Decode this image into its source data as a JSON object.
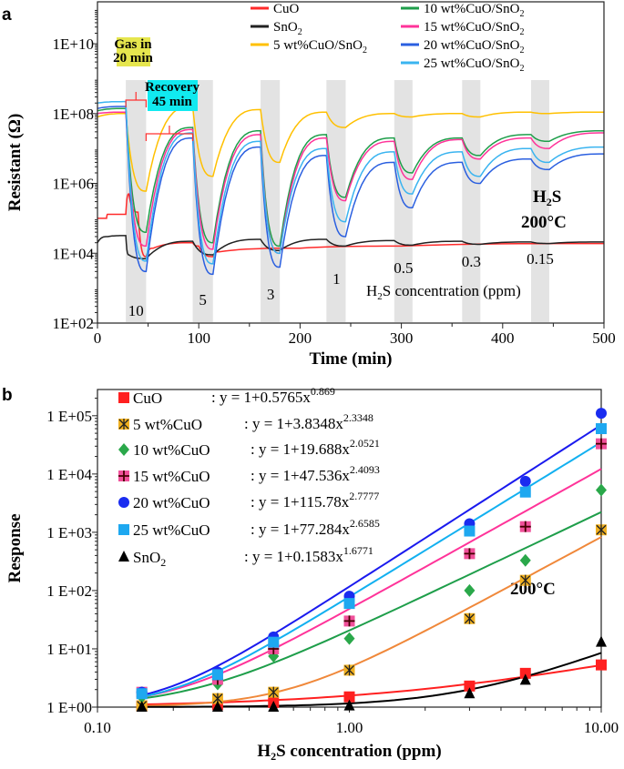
{
  "chart_data": [
    {
      "panel_label": "a",
      "type": "line",
      "xlabel": "Time (min)",
      "ylabel": "Resistant (Ω)",
      "xlim": [
        0,
        500
      ],
      "ylim_log10": [
        2,
        11.2
      ],
      "y_scale": "log",
      "x_ticks": [
        "0",
        "100",
        "200",
        "300",
        "400",
        "500"
      ],
      "y_ticks": [
        {
          "v": 10000000000.0,
          "label": "1E+10"
        },
        {
          "v": 100000000.0,
          "label": "1E+08"
        },
        {
          "v": 1000000.0,
          "label": "1E+06"
        },
        {
          "v": 10000.0,
          "label": "1E+04"
        },
        {
          "v": 100.0,
          "label": "1E+02"
        }
      ],
      "gas_exposure_bands_min": [
        [
          28,
          48
        ],
        [
          94,
          114
        ],
        [
          161,
          180
        ],
        [
          226,
          245
        ],
        [
          293,
          311
        ],
        [
          360,
          378
        ],
        [
          428,
          446
        ]
      ],
      "concentration_labels": [
        {
          "text": "10",
          "t": 38
        },
        {
          "text": "5",
          "t": 104
        },
        {
          "text": "3",
          "t": 171
        },
        {
          "text": "1",
          "t": 236
        },
        {
          "text": "0.5",
          "t": 302
        },
        {
          "text": "0.3",
          "t": 369
        },
        {
          "text": "0.15",
          "t": 437
        }
      ],
      "concentration_caption": {
        "pre": "H",
        "sub": "2",
        "post": "S concentration (ppm)"
      },
      "gas_label": {
        "pre": "H",
        "sub": "2",
        "post": "S"
      },
      "temperature": "200°C",
      "annotation_gas_in": [
        "Gas in",
        "20 min"
      ],
      "annotation_recovery": [
        "Recovery",
        "45 min"
      ],
      "legend_position": "top-right",
      "series": [
        {
          "name": "CuO",
          "color": "#ff2a2a",
          "points": [
            [
              0,
              100000.0
            ],
            [
              9,
              100000.0
            ],
            [
              10,
              130000.0
            ],
            [
              28,
              130000.0
            ],
            [
              31,
              500000.0
            ],
            [
              40,
              150000.0
            ],
            [
              48,
              8000.0
            ],
            [
              55,
              14000.0
            ],
            [
              94,
              20000.0
            ],
            [
              100,
              16000.0
            ],
            [
              114,
              8000.0
            ],
            [
              120,
              11000.0
            ],
            [
              200,
              14000.0
            ],
            [
              300,
              16000.0
            ],
            [
              500,
              19000.0
            ]
          ]
        },
        {
          "name": "SnO",
          "name_sub": "2",
          "color": "#222222",
          "points": [
            [
              0,
              20000.0
            ],
            [
              10,
              30000.0
            ],
            [
              28,
              32000.0
            ],
            [
              31,
              9000.0
            ],
            [
              48,
              7000.0
            ],
            [
              94,
              22000.0
            ],
            [
              114,
              9000.0
            ],
            [
              161,
              25000.0
            ],
            [
              180,
              12000.0
            ],
            [
              226,
              25000.0
            ],
            [
              245,
              16000.0
            ],
            [
              293,
              23000.0
            ],
            [
              311,
              17000.0
            ],
            [
              360,
              22000.0
            ],
            [
              378,
              18000.0
            ],
            [
              428,
              21000.0
            ],
            [
              446,
              19000.0
            ],
            [
              500,
              21000.0
            ]
          ]
        },
        {
          "name": "5 wt%CuO/SnO",
          "name_sub": "2",
          "color": "#ffc000",
          "points": [
            [
              0,
              80000000.0
            ],
            [
              28,
              100000000.0
            ],
            [
              48,
              600000.0
            ],
            [
              94,
              160000000.0
            ],
            [
              114,
              1600000.0
            ],
            [
              161,
              130000000.0
            ],
            [
              180,
              4000000.0
            ],
            [
              226,
              110000000.0
            ],
            [
              245,
              40000000.0
            ],
            [
              293,
              100000000.0
            ],
            [
              311,
              80000000.0
            ],
            [
              360,
              100000000.0
            ],
            [
              378,
              80000000.0
            ],
            [
              428,
              110000000.0
            ],
            [
              446,
              100000000.0
            ],
            [
              500,
              110000000.0
            ]
          ]
        },
        {
          "name": "10 wt%CuO/SnO",
          "name_sub": "2",
          "color": "#1e9e4a",
          "points": [
            [
              0,
              120000000.0
            ],
            [
              28,
              140000000.0
            ],
            [
              48,
              40000.0
            ],
            [
              94,
              40000000.0
            ],
            [
              114,
              20000.0
            ],
            [
              161,
              32000000.0
            ],
            [
              180,
              16000.0
            ],
            [
              226,
              25000000.0
            ],
            [
              245,
              400000.0
            ],
            [
              293,
              20000000.0
            ],
            [
              311,
              2000000.0
            ],
            [
              360,
              20000000.0
            ],
            [
              378,
              6300000.0
            ],
            [
              428,
              25000000.0
            ],
            [
              446,
              16000000.0
            ],
            [
              500,
              32000000.0
            ]
          ]
        },
        {
          "name": "15 wt%CuO/SnO",
          "name_sub": "2",
          "color": "#ff3399",
          "points": [
            [
              0,
              100000000.0
            ],
            [
              28,
              110000000.0
            ],
            [
              48,
              16000.0
            ],
            [
              94,
              35000000.0
            ],
            [
              114,
              13000.0
            ],
            [
              161,
              25000000.0
            ],
            [
              180,
              10000.0
            ],
            [
              226,
              20000000.0
            ],
            [
              245,
              320000.0
            ],
            [
              293,
              16000000.0
            ],
            [
              311,
              1300000.0
            ],
            [
              360,
              18000000.0
            ],
            [
              378,
              5000000.0
            ],
            [
              428,
              20000000.0
            ],
            [
              446,
              10000000.0
            ],
            [
              500,
              28000000.0
            ]
          ]
        },
        {
          "name": "20 wt%CuO/SnO",
          "name_sub": "2",
          "color": "#2a5fe0",
          "points": [
            [
              0,
              140000000.0
            ],
            [
              28,
              160000000.0
            ],
            [
              48,
              3000.0
            ],
            [
              94,
              20000000.0
            ],
            [
              114,
              2500.0
            ],
            [
              161,
              11000000.0
            ],
            [
              180,
              4000.0
            ],
            [
              226,
              6300000.0
            ],
            [
              245,
              30000.0
            ],
            [
              293,
              4000000.0
            ],
            [
              311,
              200000.0
            ],
            [
              360,
              4000000.0
            ],
            [
              378,
              1000000.0
            ],
            [
              428,
              5000000.0
            ],
            [
              446,
              2500000.0
            ],
            [
              500,
              7000000.0
            ]
          ]
        },
        {
          "name": "25 wt%CuO/SnO",
          "name_sub": "2",
          "color": "#3ab4f0",
          "points": [
            [
              0,
              200000000.0
            ],
            [
              28,
              220000000.0
            ],
            [
              48,
              6000.0
            ],
            [
              94,
              28000000.0
            ],
            [
              114,
              5000.0
            ],
            [
              161,
              16000000.0
            ],
            [
              180,
              10000.0
            ],
            [
              226,
              10000000.0
            ],
            [
              245,
              80000.0
            ],
            [
              293,
              8000000.0
            ],
            [
              311,
              500000.0
            ],
            [
              360,
              8000000.0
            ],
            [
              378,
              1600000.0
            ],
            [
              428,
              10000000.0
            ],
            [
              446,
              4000000.0
            ],
            [
              500,
              11000000.0
            ]
          ]
        }
      ]
    },
    {
      "panel_label": "b",
      "type": "scatter",
      "xlabel": {
        "pre": "H",
        "sub": "2",
        "post": "S concentration (ppm)"
      },
      "ylabel": "Response",
      "x_scale": "log",
      "y_scale": "log",
      "xlim": [
        0.1,
        10
      ],
      "ylim_log10": [
        0,
        5.45
      ],
      "x_ticks": [
        {
          "v": 0.1,
          "label": "0.10"
        },
        {
          "v": 1,
          "label": "1.00"
        },
        {
          "v": 10,
          "label": "10.00"
        }
      ],
      "y_ticks": [
        {
          "v": 1,
          "label": "1 E+00"
        },
        {
          "v": 10,
          "label": "1 E+01"
        },
        {
          "v": 100,
          "label": "1 E+02"
        },
        {
          "v": 1000,
          "label": "1 E+03"
        },
        {
          "v": 10000,
          "label": "1 E+04"
        },
        {
          "v": 100000,
          "label": "1 E+05"
        }
      ],
      "temperature": "200°C",
      "legend_position": "top-left",
      "x": [
        0.15,
        0.3,
        0.5,
        1,
        3,
        5,
        10
      ],
      "series": [
        {
          "name": "CuO",
          "marker": "square",
          "color": "#ff2020",
          "fit_color": "#ff2020",
          "values": [
            1.05,
            1.1,
            1.2,
            1.5,
            2.3,
            3.8,
            5.3
          ],
          "fit": {
            "a": 0.5765,
            "b": 0.869
          },
          "eq": ": y = 1+0.5765x",
          "exp": "0.869"
        },
        {
          "name": "5 wt%CuO",
          "marker": "asterisk-box",
          "color": "#f0b020",
          "fit_color": "#f0883a",
          "values": [
            1.05,
            1.4,
            1.8,
            4.3,
            33,
            150,
            1100
          ],
          "fit": {
            "a": 3.8348,
            "b": 2.3348
          },
          "eq": ": y = 1+3.8348x",
          "exp": "2.3348"
        },
        {
          "name": "10 wt%CuO",
          "marker": "diamond",
          "color": "#2aa84a",
          "fit_color": "#1e9e4a",
          "values": [
            1.5,
            2.5,
            7.5,
            15,
            100,
            330,
            5300
          ],
          "fit": {
            "a": 19.688,
            "b": 2.0521
          },
          "eq": ": y = 1+19.688x",
          "exp": "2.0521"
        },
        {
          "name": "15 wt%CuO",
          "marker": "plus-box",
          "color": "#f0509a",
          "fit_color": "#ff3399",
          "values": [
            1.8,
            3,
            10,
            30,
            430,
            1250,
            33000
          ],
          "fit": {
            "a": 47.536,
            "b": 2.4093
          },
          "eq": ": y = 1+47.536x",
          "exp": "2.4093"
        },
        {
          "name": "20 wt%CuO",
          "marker": "circle",
          "color": "#1a2cf0",
          "fit_color": "#1a1aee",
          "values": [
            1.8,
            4,
            16,
            80,
            1400,
            7500,
            110000
          ],
          "fit": {
            "a": 115.78,
            "b": 2.7777
          },
          "eq": ": y = 1+115.78x",
          "exp": "2.7777"
        },
        {
          "name": "25 wt%CuO",
          "marker": "square",
          "color": "#1ea8f0",
          "fit_color": "#12b0f0",
          "values": [
            1.7,
            3.6,
            13,
            60,
            1050,
            4900,
            60000
          ],
          "fit": {
            "a": 77.284,
            "b": 2.6585
          },
          "eq": ": y = 1+77.284x",
          "exp": "2.6585"
        },
        {
          "name": "SnO",
          "name_sub": "2",
          "marker": "triangle",
          "color": "#000000",
          "fit_color": "#000000",
          "values": [
            1,
            1,
            1,
            1.05,
            1.7,
            2.9,
            13
          ],
          "fit": {
            "a": 0.1583,
            "b": 1.6771
          },
          "eq": ": y = 1+0.1583x",
          "exp": "1.6771"
        }
      ]
    }
  ]
}
